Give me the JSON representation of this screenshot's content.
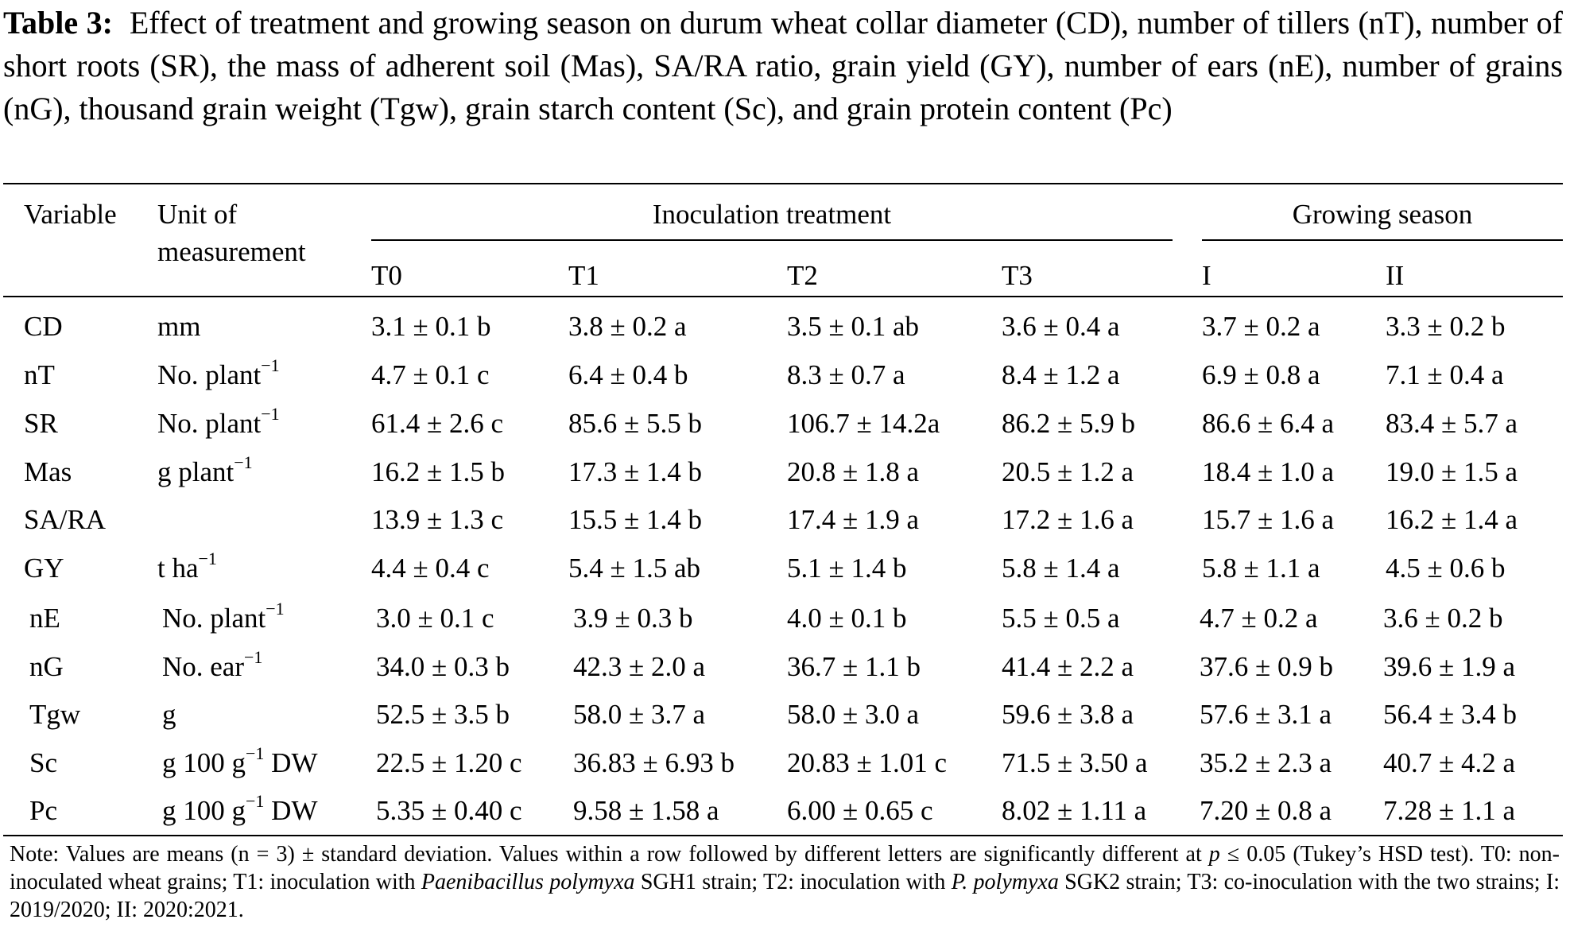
{
  "caption": {
    "label": "Table 3:",
    "text": "Effect of treatment and growing season on durum wheat collar diameter (CD), number of tillers (nT), number of short roots (SR), the mass of adherent soil (Mas), SA/RA ratio, grain yield (GY), number of ears (nE), number of grains (nG), thousand grain weight (Tgw), grain starch content (Sc), and grain protein content (Pc)"
  },
  "header": {
    "variable": "Variable",
    "unit_line1": "Unit of",
    "unit_line2": "measurement",
    "group_treatment": "Inoculation treatment",
    "group_season": "Growing season",
    "columns": [
      "T0",
      "T1",
      "T2",
      "T3",
      "I",
      "II"
    ]
  },
  "rows": [
    {
      "variable": "CD",
      "unit": "mm",
      "unit_sup": "",
      "unit_suffix": "",
      "values": [
        "3.1 ± 0.1 b",
        "3.8 ± 0.2 a",
        "3.5 ± 0.1 ab",
        "3.6 ± 0.4 a",
        "3.7 ± 0.2 a",
        "3.3 ± 0.2 b"
      ]
    },
    {
      "variable": "nT",
      "unit": "No. plant",
      "unit_sup": "−1",
      "unit_suffix": "",
      "values": [
        "4.7 ± 0.1 c",
        "6.4 ± 0.4 b",
        "8.3 ± 0.7 a",
        "8.4 ± 1.2 a",
        "6.9 ± 0.8 a",
        "7.1 ± 0.4 a"
      ]
    },
    {
      "variable": "SR",
      "unit": "No. plant",
      "unit_sup": "−1",
      "unit_suffix": "",
      "values": [
        "61.4 ± 2.6 c",
        "85.6 ± 5.5 b",
        "106.7 ± 14.2a",
        "86.2 ± 5.9 b",
        "86.6 ± 6.4 a",
        "83.4 ± 5.7 a"
      ]
    },
    {
      "variable": "Mas",
      "unit": "g plant",
      "unit_sup": "−1",
      "unit_suffix": "",
      "values": [
        "16.2 ± 1.5 b",
        "17.3 ± 1.4 b",
        "20.8 ± 1.8 a",
        "20.5 ± 1.2 a",
        "18.4 ± 1.0 a",
        "19.0 ± 1.5 a"
      ]
    },
    {
      "variable": "SA/RA",
      "unit": "",
      "unit_sup": "",
      "unit_suffix": "",
      "values": [
        "13.9 ± 1.3 c",
        "15.5 ± 1.4 b",
        "17.4 ± 1.9 a",
        "17.2 ± 1.6 a",
        "15.7 ± 1.6 a",
        "16.2 ± 1.4 a"
      ]
    },
    {
      "variable": "GY",
      "unit": "t ha",
      "unit_sup": "−1",
      "unit_suffix": "",
      "values": [
        "4.4 ± 0.4 c",
        "5.4 ± 1.5 ab",
        "5.1 ± 1.4 b",
        "5.8 ± 1.4 a",
        "5.8 ± 1.1 a",
        "4.5 ± 0.6 b"
      ]
    },
    {
      "variable": "nE",
      "unit": "No. plant",
      "unit_sup": "−1",
      "unit_suffix": "",
      "values": [
        "3.0 ± 0.1 c",
        "3.9 ± 0.3 b",
        "4.0 ± 0.1 b",
        "5.5 ± 0.5 a",
        "4.7 ± 0.2 a",
        "3.6 ± 0.2 b"
      ]
    },
    {
      "variable": "nG",
      "unit": "No. ear",
      "unit_sup": "−1",
      "unit_suffix": "",
      "values": [
        "34.0 ± 0.3 b",
        "42.3 ± 2.0 a",
        "36.7 ± 1.1 b",
        "41.4 ± 2.2 a",
        "37.6 ± 0.9 b",
        "39.6 ± 1.9 a"
      ]
    },
    {
      "variable": "Tgw",
      "unit": "g",
      "unit_sup": "",
      "unit_suffix": "",
      "values": [
        "52.5 ± 3.5 b",
        "58.0 ± 3.7 a",
        "58.0 ± 3.0 a",
        "59.6 ± 3.8 a",
        "57.6 ± 3.1 a",
        "56.4 ± 3.4 b"
      ]
    },
    {
      "variable": "Sc",
      "unit": "g 100 g",
      "unit_sup": "−1",
      "unit_suffix": " DW",
      "values": [
        "22.5 ± 1.20 c",
        "36.83 ± 6.93 b",
        "20.83 ± 1.01 c",
        "71.5 ± 3.50 a",
        "35.2 ± 2.3 a",
        "40.7 ± 4.2 a"
      ]
    },
    {
      "variable": "Pc",
      "unit": "g 100 g",
      "unit_sup": "−1",
      "unit_suffix": " DW",
      "values": [
        "5.35 ± 0.40 c",
        "9.58 ± 1.58 a",
        "6.00 ± 0.65 c",
        "8.02 ± 1.11 a",
        "7.20 ± 0.8 a",
        "7.28 ± 1.1 a"
      ]
    }
  ],
  "note": {
    "part1": "Note: Values are means (n = 3) ± standard deviation. Values within a row followed by different letters are significantly different at ",
    "p": "p",
    "part2": " ≤ 0.05 (Tukey’s HSD test). T0: non-inoculated wheat grains; T1: inoculation with ",
    "species1": "Paenibacillus polymyxa",
    "part3": " SGH1 strain; T2: inoculation with ",
    "species2": "P. polymyxa",
    "part4": " SGK2 strain; T3: co-inoculation with the two strains; I: 2019/2020; II: 2020:2021."
  }
}
